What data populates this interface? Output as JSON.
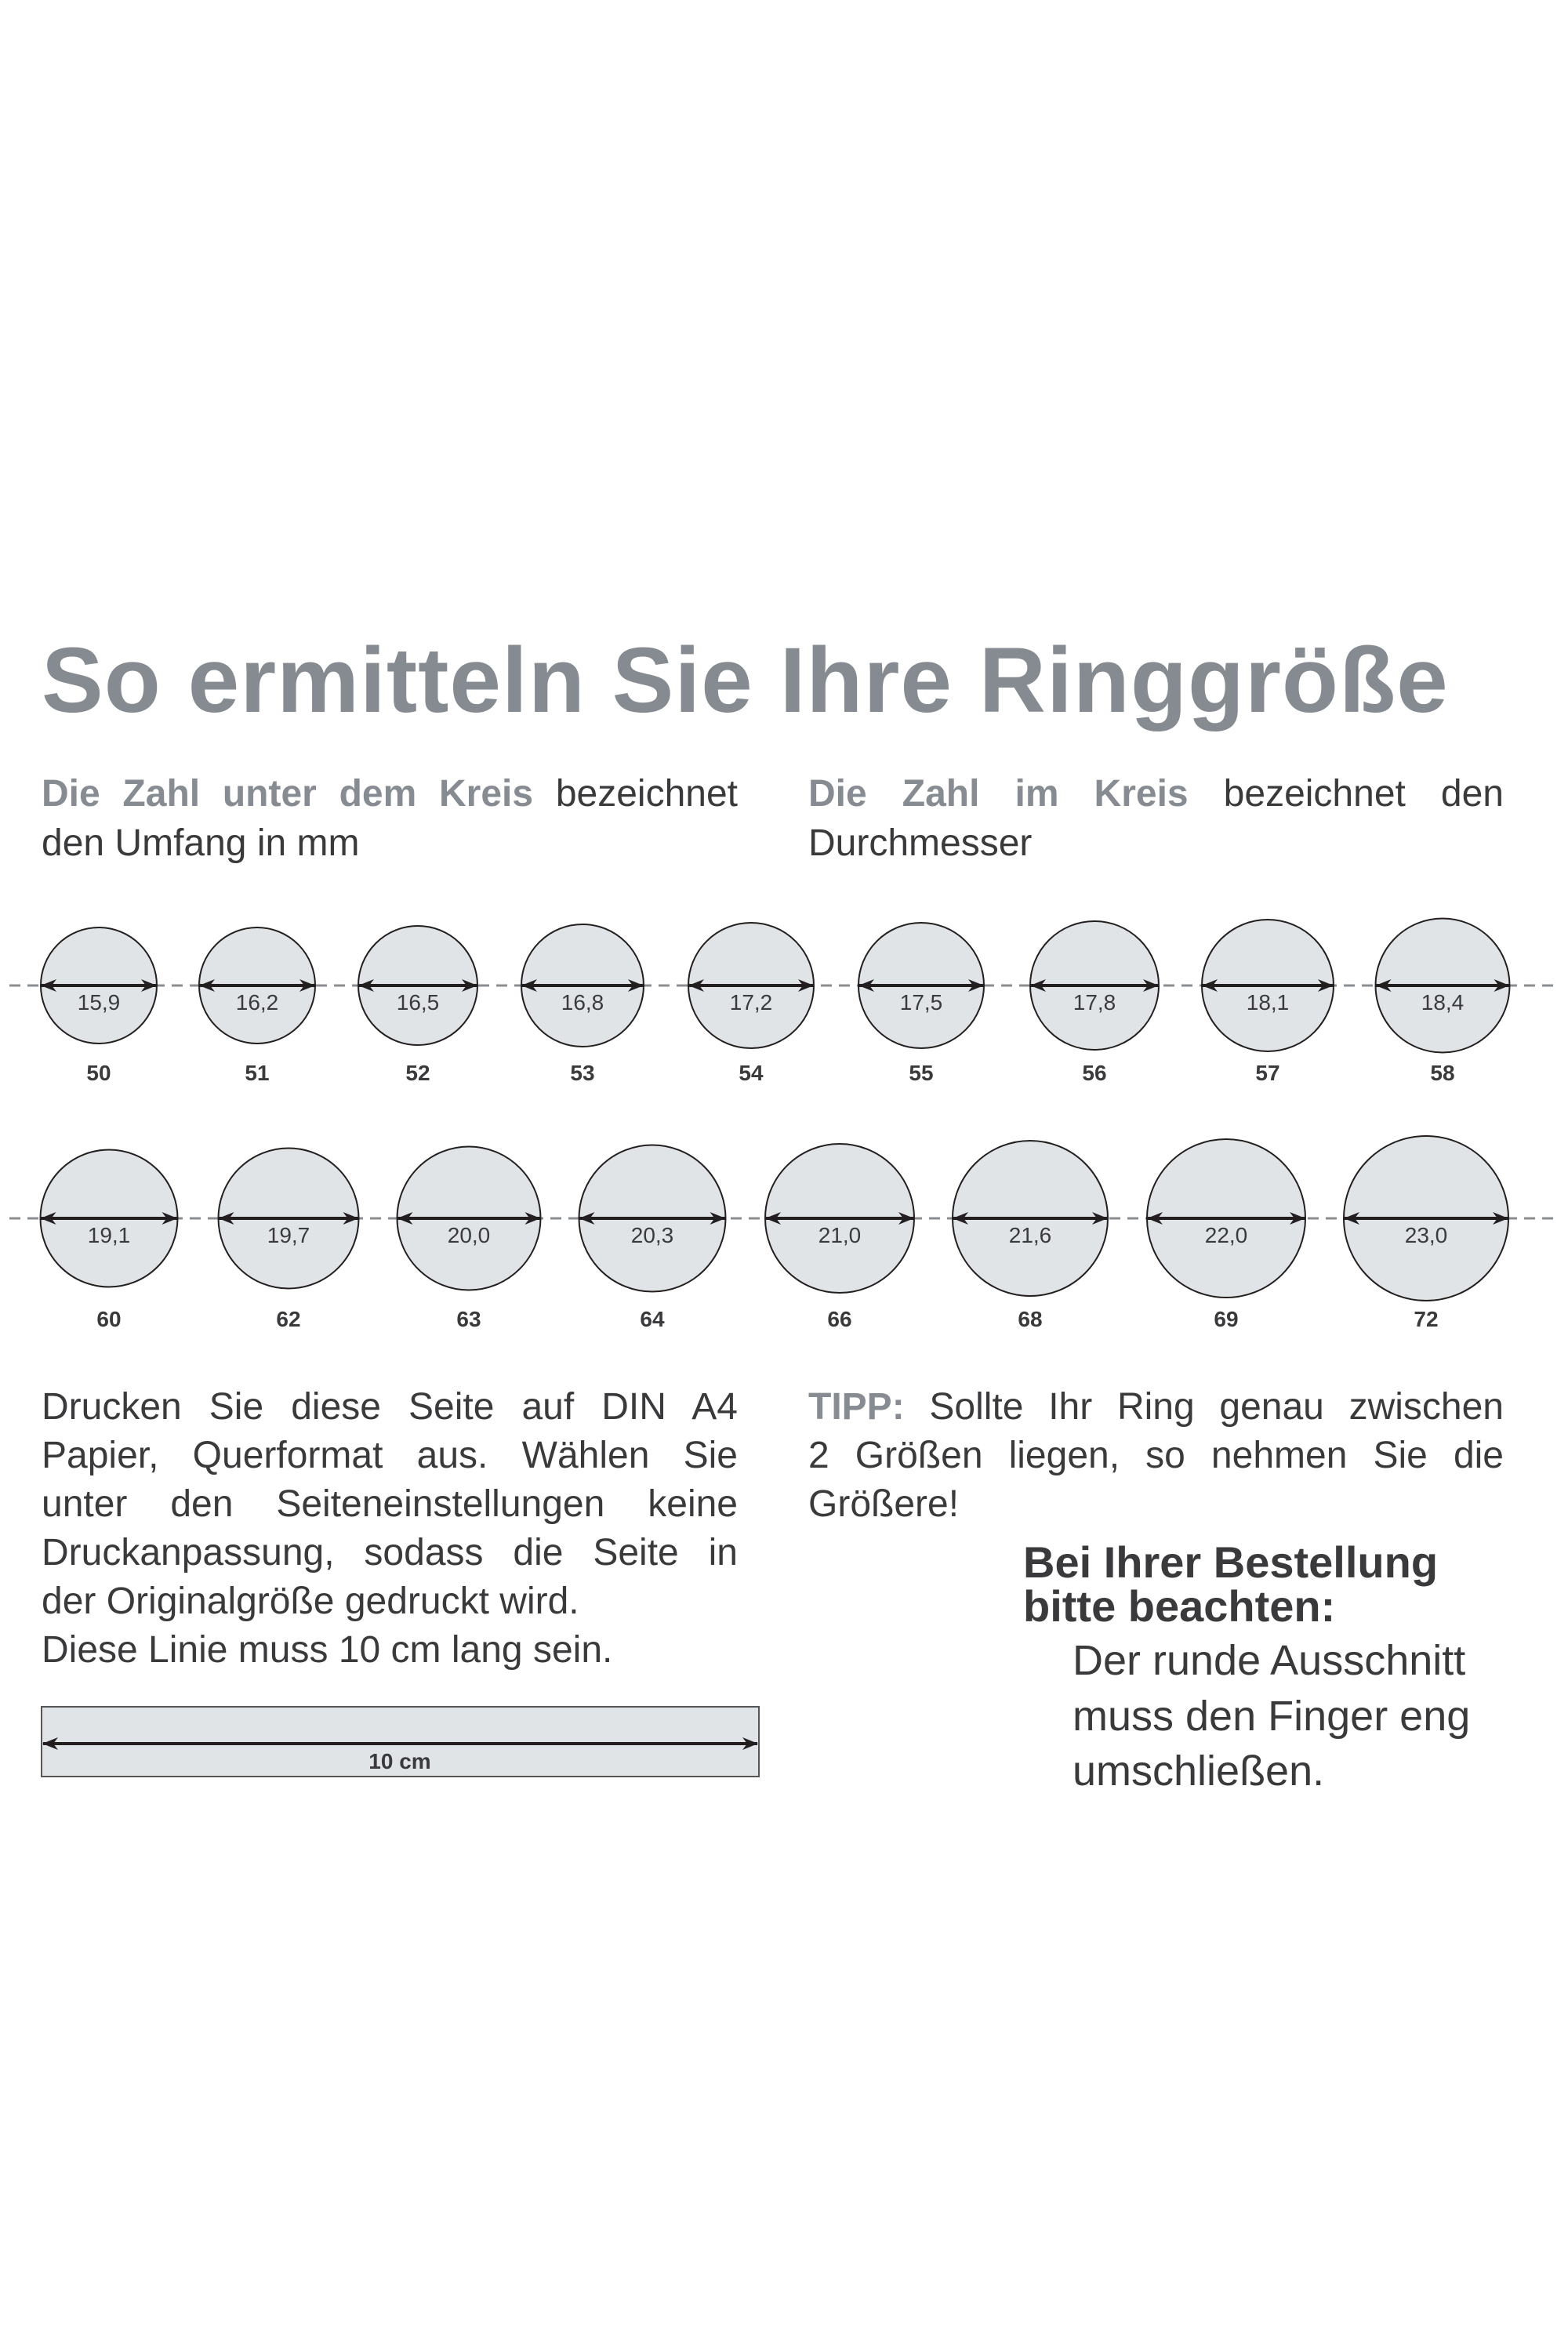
{
  "title": "So ermitteln Sie Ihre Ringgröße",
  "legend_left": {
    "highlight": "Die Zahl unter dem Kreis",
    "rest": " bezeichnet",
    "line2": "den Umfang in mm"
  },
  "legend_right": {
    "highlight": "Die Zahl im Kreis",
    "rest": " bezeichnet den",
    "line2": "Durchmesser"
  },
  "rings_row1": [
    {
      "diameter": "15,9",
      "size": "50"
    },
    {
      "diameter": "16,2",
      "size": "51"
    },
    {
      "diameter": "16,5",
      "size": "52"
    },
    {
      "diameter": "16,8",
      "size": "53"
    },
    {
      "diameter": "17,2",
      "size": "54"
    },
    {
      "diameter": "17,5",
      "size": "55"
    },
    {
      "diameter": "17,8",
      "size": "56"
    },
    {
      "diameter": "18,1",
      "size": "57"
    },
    {
      "diameter": "18,4",
      "size": "58"
    }
  ],
  "rings_row2": [
    {
      "diameter": "19,1",
      "size": "60"
    },
    {
      "diameter": "19,7",
      "size": "62"
    },
    {
      "diameter": "20,0",
      "size": "63"
    },
    {
      "diameter": "20,3",
      "size": "64"
    },
    {
      "diameter": "21,0",
      "size": "66"
    },
    {
      "diameter": "21,6",
      "size": "68"
    },
    {
      "diameter": "22,0",
      "size": "69"
    },
    {
      "diameter": "23,0",
      "size": "72"
    }
  ],
  "instructions": [
    "Drucken Sie diese Seite auf DIN A4",
    "Papier, Querformat aus. Wählen Sie",
    "unter den Seiteneinstellungen keine",
    "Druckanpassung, sodass die Seite in",
    "der Originalgröße gedruckt wird.",
    "Diese Linie muss 10 cm lang sein."
  ],
  "ruler_label": "10 cm",
  "tip": {
    "label": "TIPP:",
    "lines": [
      " Sollte Ihr Ring genau zwischen",
      "2 Größen liegen, so nehmen Sie die",
      "Größere!"
    ]
  },
  "order_note": {
    "title_lines": [
      "Bei Ihrer Bestellung",
      "bitte beachten:"
    ],
    "lines": [
      "Der runde Ausschnitt",
      "muss den Finger eng",
      "umschließen."
    ]
  },
  "colors": {
    "accent_gray": "#878c92",
    "text": "#3a3a3c",
    "ring_fill": "#e1e4e7",
    "dash": "#8a8d90"
  }
}
